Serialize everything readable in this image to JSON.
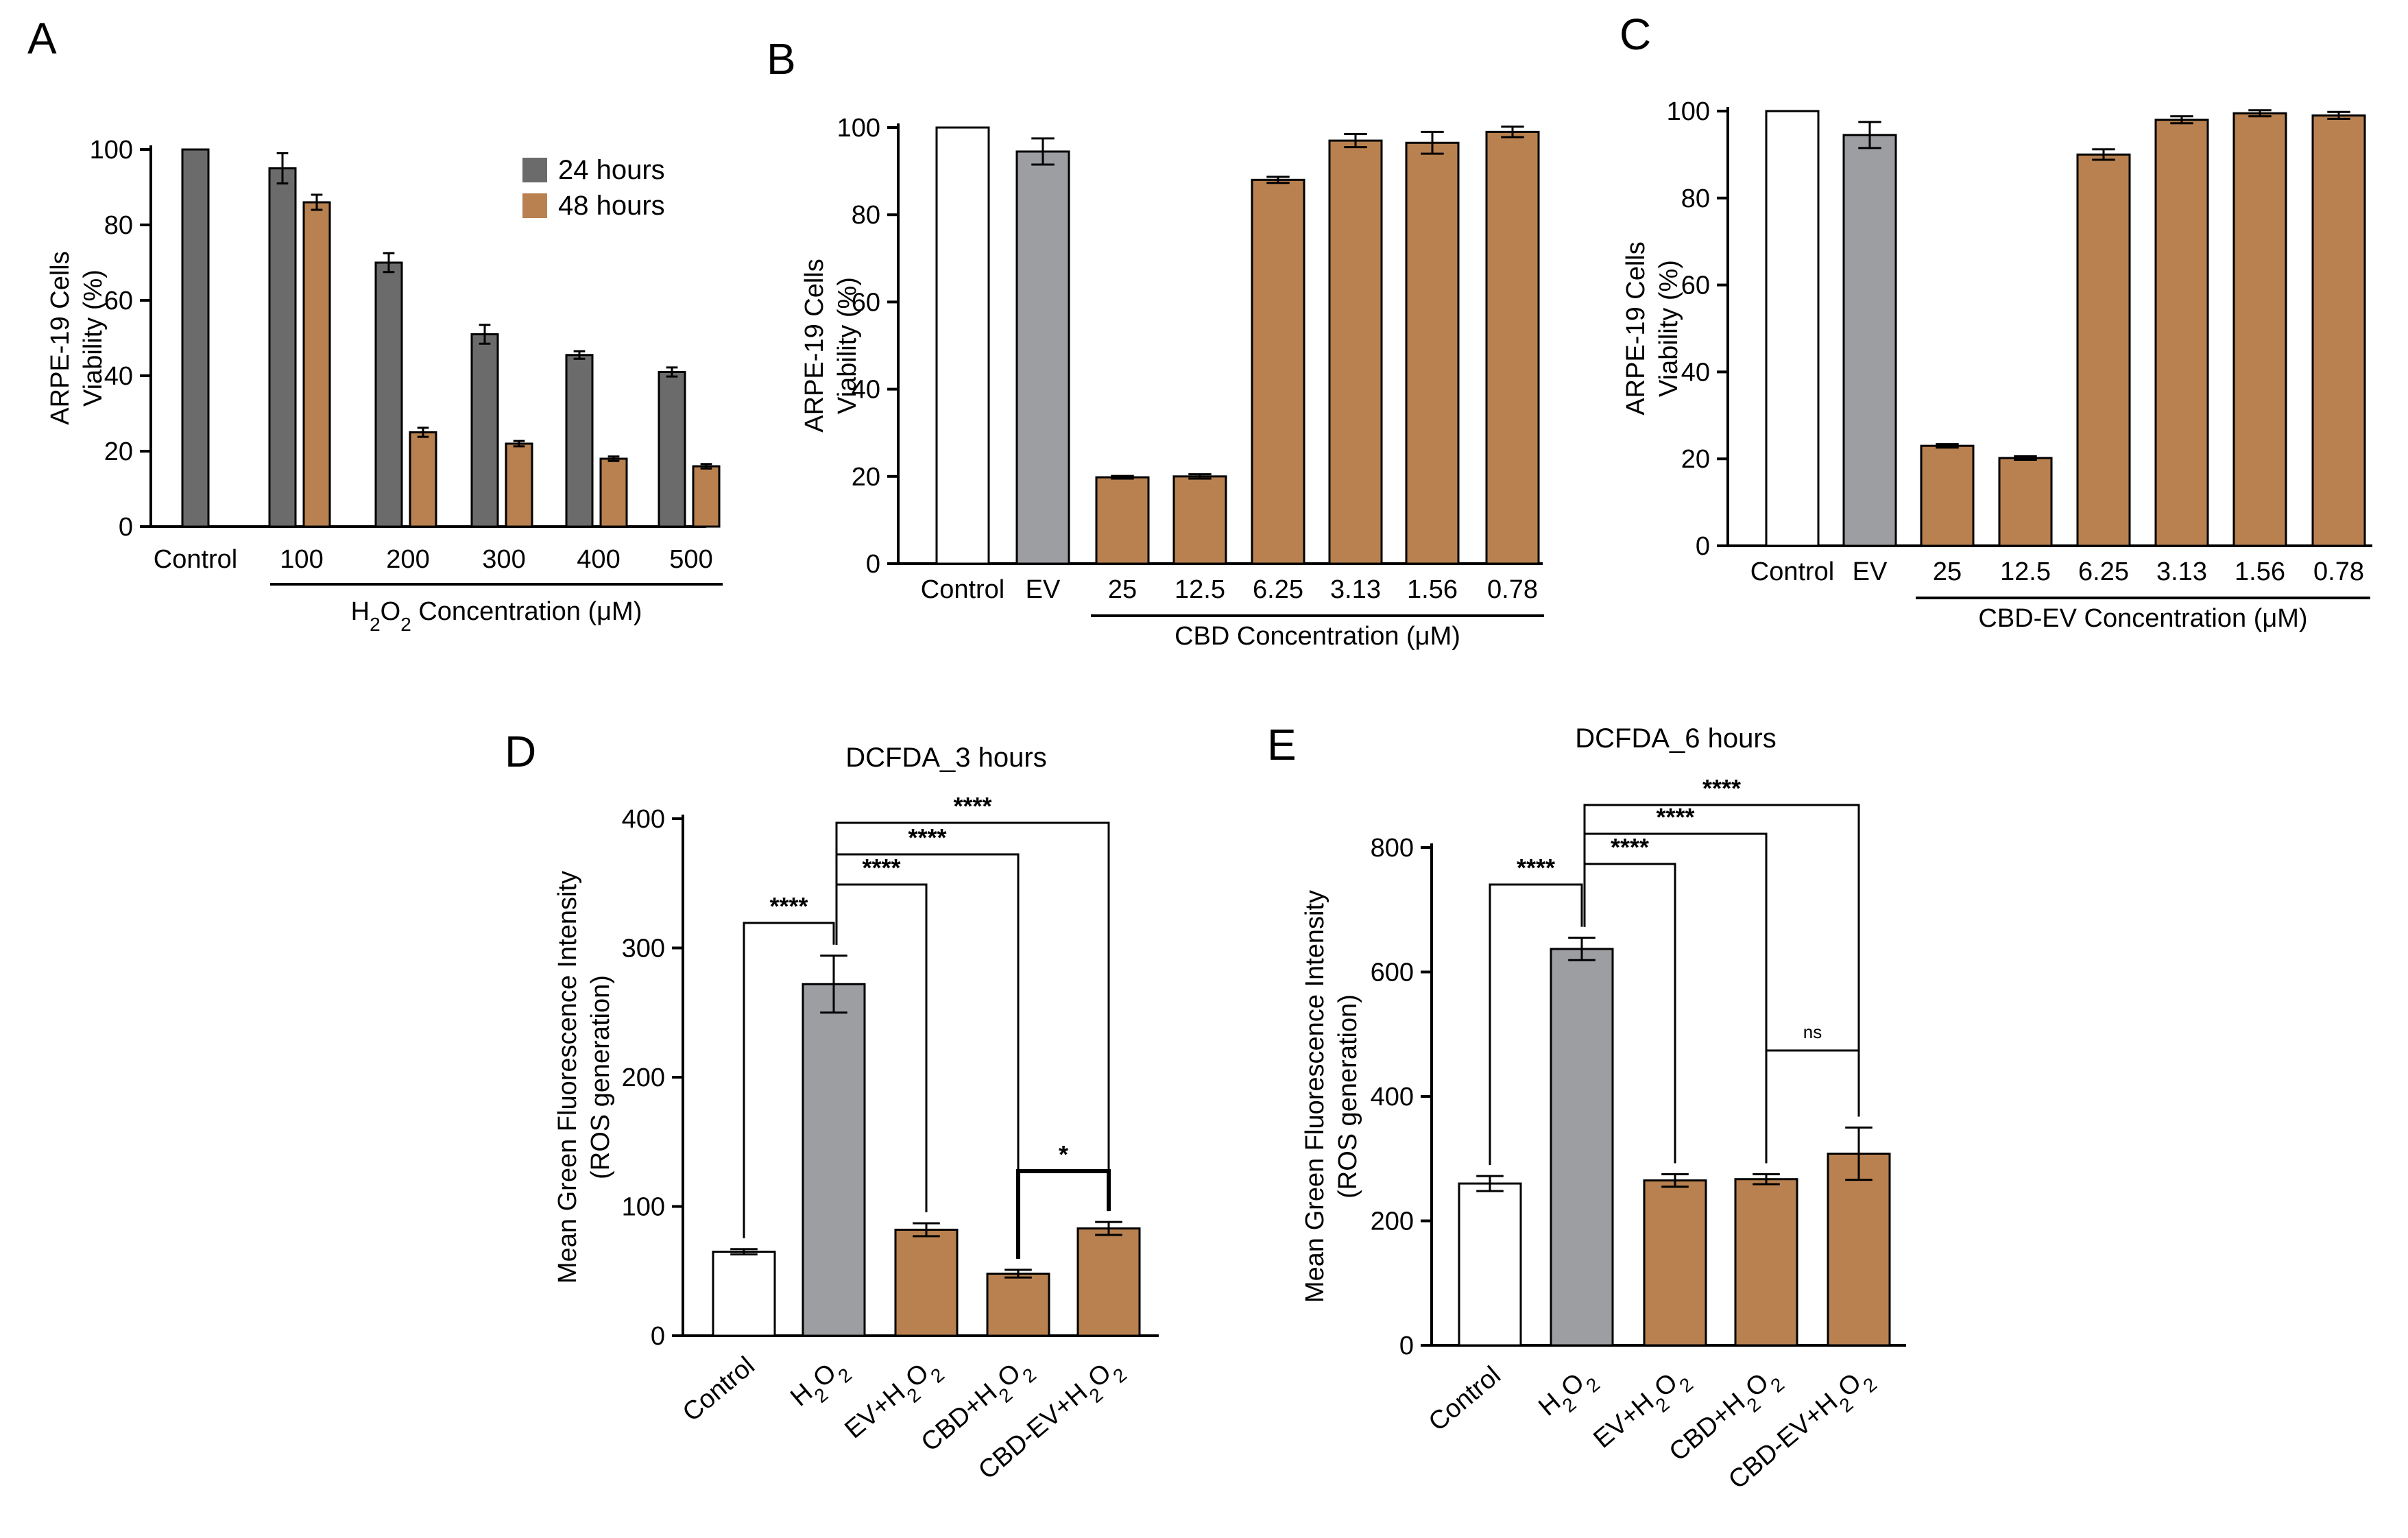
{
  "colors": {
    "gray_dark": "#6b6b6b",
    "gray": "#9d9ea2",
    "orange": "#b9814f",
    "white": "#ffffff"
  },
  "chart_data": [
    {
      "panel": "A",
      "type": "bar",
      "ylabel_lines": [
        "ARPE-19 Cells",
        "Viability (%)"
      ],
      "xlabel_html": "H<tspan baseline-shift='sub' font-size='28'>2</tspan>O<tspan baseline-shift='sub' font-size='28'>2</tspan> Concentration (μM)",
      "xlabel": "H2O2 Concentration (μM)",
      "ylim": [
        0,
        100
      ],
      "yticks": [
        0,
        20,
        40,
        60,
        80,
        100
      ],
      "categories": [
        "Control",
        "100",
        "200",
        "300",
        "400",
        "500"
      ],
      "bracket_from": 1,
      "bracket_to": 5,
      "legend": [
        "24 hours",
        "48 hours"
      ],
      "series": [
        {
          "name": "24 hours",
          "color": "#6b6b6b",
          "values": [
            100,
            95,
            70,
            51,
            45.5,
            41
          ],
          "errors": [
            0,
            4,
            2.5,
            2.5,
            1,
            1.2
          ]
        },
        {
          "name": "48 hours",
          "color": "#b9814f",
          "values": [
            null,
            86,
            25,
            22,
            18,
            16
          ],
          "errors": [
            0,
            2,
            1.2,
            0.7,
            0.6,
            0.6
          ]
        }
      ]
    },
    {
      "panel": "B",
      "type": "bar",
      "ylabel_lines": [
        "ARPE-19 Cells",
        "Viability (%)"
      ],
      "xlabel": "CBD Concentration (μM)",
      "ylim": [
        0,
        100
      ],
      "yticks": [
        0,
        20,
        40,
        60,
        80,
        100
      ],
      "categories": [
        "Control",
        "EV",
        "25",
        "12.5",
        "6.25",
        "3.13",
        "1.56",
        "0.78"
      ],
      "bracket_from": 2,
      "bracket_to": 7,
      "values": [
        100,
        94.5,
        19.8,
        20,
        88,
        97,
        96.5,
        99
      ],
      "errors": [
        0,
        3,
        0.3,
        0.5,
        0.7,
        1.5,
        2.5,
        1.2
      ],
      "colors": [
        "#ffffff",
        "#9d9ea2",
        "#b9814f",
        "#b9814f",
        "#b9814f",
        "#b9814f",
        "#b9814f",
        "#b9814f"
      ]
    },
    {
      "panel": "C",
      "type": "bar",
      "ylabel_lines": [
        "ARPE-19 Cells",
        "Viability (%)"
      ],
      "xlabel": "CBD-EV Concentration (μM)",
      "ylim": [
        0,
        100
      ],
      "yticks": [
        0,
        20,
        40,
        60,
        80,
        100
      ],
      "categories": [
        "Control",
        "EV",
        "25",
        "12.5",
        "6.25",
        "3.13",
        "1.56",
        "0.78"
      ],
      "bracket_from": 2,
      "bracket_to": 7,
      "values": [
        100,
        94.5,
        23,
        20.2,
        90,
        98,
        99.5,
        99
      ],
      "errors": [
        0,
        3,
        0.4,
        0.4,
        1.2,
        0.8,
        0.7,
        0.8
      ],
      "colors": [
        "#ffffff",
        "#9d9ea2",
        "#b9814f",
        "#b9814f",
        "#b9814f",
        "#b9814f",
        "#b9814f",
        "#b9814f"
      ]
    },
    {
      "panel": "D",
      "type": "bar",
      "title": "DCFDA_3 hours",
      "ylabel_lines": [
        "Mean Green Fluorescence Intensity",
        "(ROS generation)"
      ],
      "ylim": [
        0,
        400
      ],
      "yticks": [
        0,
        100,
        200,
        300,
        400
      ],
      "categories": [
        "Control",
        "H2O2",
        "EV+H2O2",
        "CBD+H2O2",
        "CBD-EV+H2O2"
      ],
      "category_html": [
        "Control",
        "H<tspan baseline-shift='sub' font-size='28'>2</tspan>O<tspan baseline-shift='sub' font-size='28'>2</tspan>",
        "EV+H<tspan baseline-shift='sub' font-size='28'>2</tspan>O<tspan baseline-shift='sub' font-size='28'>2</tspan>",
        "CBD+H<tspan baseline-shift='sub' font-size='28'>2</tspan>O<tspan baseline-shift='sub' font-size='28'>2</tspan>",
        "CBD-EV+H<tspan baseline-shift='sub' font-size='28'>2</tspan>O<tspan baseline-shift='sub' font-size='28'>2</tspan>"
      ],
      "values": [
        65,
        272,
        82,
        48,
        83
      ],
      "errors": [
        2,
        22,
        5,
        3,
        5
      ],
      "colors": [
        "#ffffff",
        "#9d9ea2",
        "#b9814f",
        "#b9814f",
        "#b9814f"
      ],
      "significance": [
        {
          "from": 0,
          "to": 1,
          "label": "****"
        },
        {
          "from": 1,
          "to": 2,
          "label": "****"
        },
        {
          "from": 1,
          "to": 3,
          "label": "****"
        },
        {
          "from": 1,
          "to": 4,
          "label": "****"
        },
        {
          "from": 3,
          "to": 4,
          "label": "*"
        }
      ]
    },
    {
      "panel": "E",
      "type": "bar",
      "title": "DCFDA_6 hours",
      "ylabel_lines": [
        "Mean Green Fluorescence Intensity",
        "(ROS generation)"
      ],
      "ylim": [
        0,
        800
      ],
      "yticks": [
        0,
        200,
        400,
        600,
        800
      ],
      "categories": [
        "Control",
        "H2O2",
        "EV+H2O2",
        "CBD+H2O2",
        "CBD-EV+H2O2"
      ],
      "category_html": [
        "Control",
        "H<tspan baseline-shift='sub' font-size='28'>2</tspan>O<tspan baseline-shift='sub' font-size='28'>2</tspan>",
        "EV+H<tspan baseline-shift='sub' font-size='28'>2</tspan>O<tspan baseline-shift='sub' font-size='28'>2</tspan>",
        "CBD+H<tspan baseline-shift='sub' font-size='28'>2</tspan>O<tspan baseline-shift='sub' font-size='28'>2</tspan>",
        "CBD-EV+H<tspan baseline-shift='sub' font-size='28'>2</tspan>O<tspan baseline-shift='sub' font-size='28'>2</tspan>"
      ],
      "values": [
        260,
        637,
        265,
        267,
        308
      ],
      "errors": [
        12,
        18,
        10,
        8,
        42
      ],
      "colors": [
        "#ffffff",
        "#9d9ea2",
        "#b9814f",
        "#b9814f",
        "#b9814f"
      ],
      "significance": [
        {
          "from": 0,
          "to": 1,
          "label": "****"
        },
        {
          "from": 1,
          "to": 2,
          "label": "****"
        },
        {
          "from": 1,
          "to": 3,
          "label": "****"
        },
        {
          "from": 1,
          "to": 4,
          "label": "****"
        },
        {
          "from": 3,
          "to": 4,
          "label": "ns"
        }
      ]
    }
  ]
}
